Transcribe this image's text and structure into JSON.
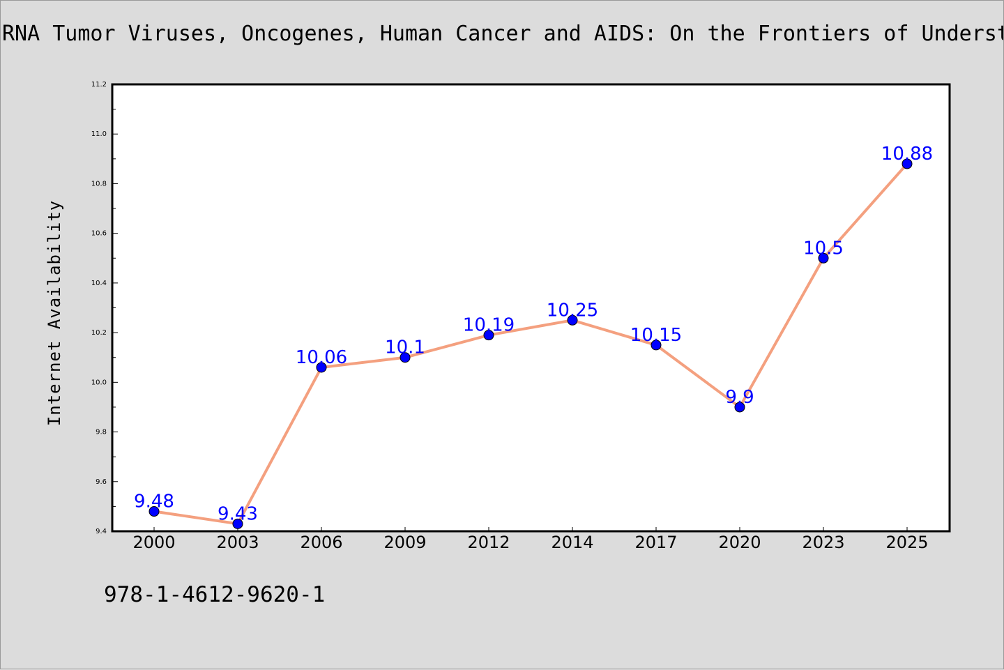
{
  "chart_data": {
    "type": "line",
    "title": "RNA Tumor Viruses, Oncogenes, Human Cancer and AIDS: On the Frontiers of Underst",
    "xlabel": "",
    "ylabel": "Internet Availability",
    "categories": [
      "2000",
      "2003",
      "2006",
      "2009",
      "2012",
      "2014",
      "2017",
      "2020",
      "2023",
      "2025"
    ],
    "series": [
      {
        "values": [
          9.48,
          9.43,
          10.06,
          10.1,
          10.19,
          10.25,
          10.15,
          9.9,
          10.5,
          10.88
        ],
        "labels": [
          "9.48",
          "9.43",
          "10.06",
          "10.1",
          "10.19",
          "10.25",
          "10.15",
          "9.9",
          "10.5",
          "10.88"
        ]
      }
    ],
    "ylim": [
      9.4,
      11.2
    ],
    "yticks": [
      "9.4",
      "9.6",
      "9.8",
      "10.0",
      "10.2",
      "10.4",
      "10.6",
      "10.8",
      "11.0",
      "11.2"
    ],
    "grid": false,
    "colors": {
      "line": "#f4a07f",
      "marker": "#0000ff",
      "label": "#0000ff"
    }
  },
  "footer": {
    "isbn": "978-1-4612-9620-1"
  }
}
